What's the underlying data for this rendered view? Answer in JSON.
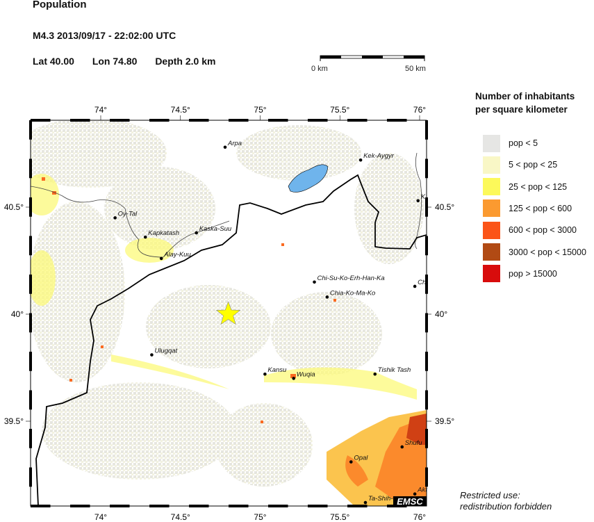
{
  "header": {
    "title": "Population",
    "event": "M4.3  2013/09/17 - 22:02:00 UTC",
    "lat": "Lat 40.00",
    "lon": "Lon  74.80",
    "depth": "Depth  2.0 km"
  },
  "scale_bar": {
    "start_label": "0 km",
    "end_label": "50 km"
  },
  "map": {
    "lon_ticks": [
      {
        "value": 74,
        "label": "74°"
      },
      {
        "value": 74.5,
        "label": "74.5°"
      },
      {
        "value": 75,
        "label": "75°"
      },
      {
        "value": 75.5,
        "label": "75.5°"
      },
      {
        "value": 76,
        "label": "76°"
      }
    ],
    "lat_ticks": [
      {
        "value": 40.5,
        "label": "40.5°"
      },
      {
        "value": 40,
        "label": "40°"
      },
      {
        "value": 39.5,
        "label": "39.5°"
      }
    ],
    "epicenter": {
      "lon": 74.8,
      "lat": 40.0,
      "color": "#ffff00",
      "icon": "star-icon"
    },
    "cities": [
      {
        "name": "Arpa",
        "lon": 74.78,
        "lat": 40.78
      },
      {
        "name": "Kek-Aygyr",
        "lon": 75.63,
        "lat": 40.72
      },
      {
        "name": "Oy-Tal",
        "lon": 74.09,
        "lat": 40.45
      },
      {
        "name": "Kapkatash",
        "lon": 74.28,
        "lat": 40.36
      },
      {
        "name": "Kaska-Suu",
        "lon": 74.6,
        "lat": 40.38
      },
      {
        "name": "Alay-Kuu",
        "lon": 74.38,
        "lat": 40.26
      },
      {
        "name": "K",
        "lon": 75.99,
        "lat": 40.53
      },
      {
        "name": "Chi-Su-Ko-Erh-Han-Ka",
        "lon": 75.34,
        "lat": 40.15
      },
      {
        "name": "Chia-Ko-Ma-Ko",
        "lon": 75.42,
        "lat": 40.08
      },
      {
        "name": "Ch",
        "lon": 75.97,
        "lat": 40.13
      },
      {
        "name": "Ulugqat",
        "lon": 74.32,
        "lat": 39.81
      },
      {
        "name": "Kansu",
        "lon": 75.03,
        "lat": 39.72
      },
      {
        "name": "Wuqia",
        "lon": 75.21,
        "lat": 39.7
      },
      {
        "name": "Tishik Tash",
        "lon": 75.72,
        "lat": 39.72
      },
      {
        "name": "Shufu",
        "lon": 75.89,
        "lat": 39.38
      },
      {
        "name": "Opal",
        "lon": 75.57,
        "lat": 39.31
      },
      {
        "name": "Akt",
        "lon": 75.97,
        "lat": 39.16
      },
      {
        "name": "Ta-Shih-",
        "lon": 75.66,
        "lat": 39.12
      }
    ],
    "logo": "EMSC",
    "lake_color": "#6fb4ec"
  },
  "legend": {
    "title_line1": "Number of inhabitants",
    "title_line2": "per square kilometer",
    "items": [
      {
        "label": "pop < 5",
        "color": "#e6e6e4"
      },
      {
        "label": "5 < pop < 25",
        "color": "#f9f7c6"
      },
      {
        "label": "25 < pop < 125",
        "color": "#fcf95a"
      },
      {
        "label": "125 < pop < 600",
        "color": "#fb9a30"
      },
      {
        "label": "600 < pop < 3000",
        "color": "#fb5418"
      },
      {
        "label": "3000 < pop < 15000",
        "color": "#b14a14"
      },
      {
        "label": "pop > 15000",
        "color": "#d80c0c"
      }
    ]
  },
  "footer": {
    "restricted_line1": "Restricted use:",
    "restricted_line2": "redistribution forbidden"
  }
}
